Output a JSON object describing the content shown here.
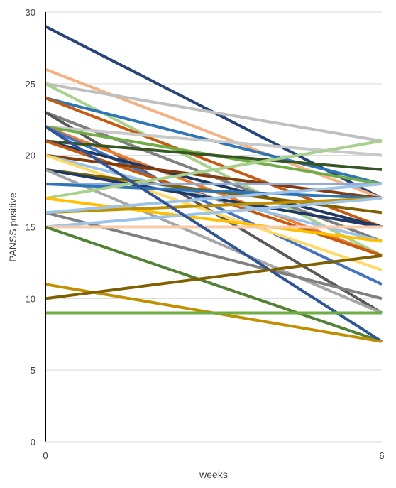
{
  "chart_data": {
    "type": "line",
    "x": [
      0,
      6
    ],
    "xlabel": "weeks",
    "ylabel": "PANSS positive",
    "xlim": [
      0,
      6
    ],
    "ylim": [
      0,
      30
    ],
    "x_ticks": [
      "0",
      "6"
    ],
    "y_ticks": [
      "0",
      "5",
      "10",
      "15",
      "20",
      "25",
      "30"
    ],
    "grid": "horizontal",
    "legend": "none",
    "series": [
      {
        "values": [
          29,
          17
        ],
        "color": "#264478"
      },
      {
        "values": [
          26,
          17
        ],
        "color": "#F4B183"
      },
      {
        "values": [
          25,
          21
        ],
        "color": "#BFBFBF"
      },
      {
        "values": [
          25,
          13
        ],
        "color": "#A9D18E"
      },
      {
        "values": [
          24,
          18
        ],
        "color": "#2E75B6"
      },
      {
        "values": [
          24,
          15
        ],
        "color": "#C55A11"
      },
      {
        "values": [
          23,
          14
        ],
        "color": "#7F7F7F"
      },
      {
        "values": [
          23,
          9
        ],
        "color": "#595959"
      },
      {
        "values": [
          22,
          20
        ],
        "color": "#C9C9C9"
      },
      {
        "values": [
          22,
          18
        ],
        "color": "#70AD47"
      },
      {
        "values": [
          22,
          13
        ],
        "color": "#ED7D31"
      },
      {
        "values": [
          22,
          11
        ],
        "color": "#4472C4"
      },
      {
        "values": [
          21,
          19
        ],
        "color": "#375623"
      },
      {
        "values": [
          21,
          15
        ],
        "color": "#1F3864"
      },
      {
        "values": [
          21,
          13
        ],
        "color": "#C55A11"
      },
      {
        "values": [
          20,
          17
        ],
        "color": "#843C0C"
      },
      {
        "values": [
          20,
          14
        ],
        "color": "#9DC3E6"
      },
      {
        "values": [
          20,
          12
        ],
        "color": "#FFD966"
      },
      {
        "values": [
          19,
          16
        ],
        "color": "#806000"
      },
      {
        "values": [
          19,
          15
        ],
        "color": "#1F3864"
      },
      {
        "values": [
          19,
          9
        ],
        "color": "#A5A5A5"
      },
      {
        "values": [
          18,
          18
        ],
        "color": "#8FAADC"
      },
      {
        "values": [
          18,
          17
        ],
        "color": "#2E75B6"
      },
      {
        "values": [
          17,
          21
        ],
        "color": "#A9D18E"
      },
      {
        "values": [
          17,
          14
        ],
        "color": "#FFC000"
      },
      {
        "values": [
          16,
          17
        ],
        "color": "#BF9000"
      },
      {
        "values": [
          16,
          10
        ],
        "color": "#808080"
      },
      {
        "values": [
          16,
          18
        ],
        "color": "#9DC3E6"
      },
      {
        "values": [
          15,
          17
        ],
        "color": "#9DC3E6"
      },
      {
        "values": [
          15,
          15
        ],
        "color": "#F8CBAD"
      },
      {
        "values": [
          15,
          7
        ],
        "color": "#548235"
      },
      {
        "values": [
          22,
          7
        ],
        "color": "#2F5597"
      },
      {
        "values": [
          11,
          7
        ],
        "color": "#BF9000"
      },
      {
        "values": [
          10,
          13
        ],
        "color": "#7F6000"
      },
      {
        "values": [
          9,
          9
        ],
        "color": "#70AD47"
      }
    ]
  }
}
